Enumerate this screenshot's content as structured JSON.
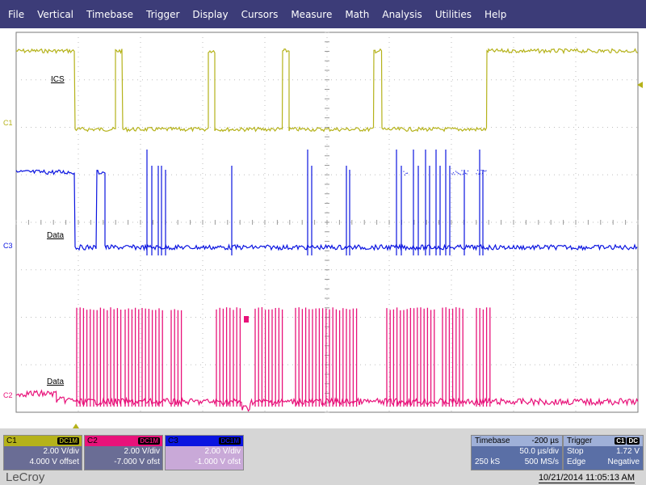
{
  "menu": [
    "File",
    "Vertical",
    "Timebase",
    "Trigger",
    "Display",
    "Cursors",
    "Measure",
    "Math",
    "Analysis",
    "Utilities",
    "Help"
  ],
  "colors": {
    "c1": "#b5b21a",
    "c2": "#e8127a",
    "c3": "#0a14e0",
    "menubar": "#3c3c78"
  },
  "traces": {
    "c1_tag": "C1",
    "c2_tag": "C2",
    "c3_tag": "C3",
    "c1_label": "ICS",
    "c3_label": "Data",
    "c2_label": "Data"
  },
  "channels": {
    "c1": {
      "name": "C1",
      "coupling": "DC1M",
      "vdiv": "2.00 V/div",
      "offset": "4.000 V offset"
    },
    "c2": {
      "name": "C2",
      "coupling": "DC1M",
      "vdiv": "2.00 V/div",
      "offset": "-7.000 V ofst"
    },
    "c3": {
      "name": "C3",
      "coupling": "DC1M",
      "vdiv": "2.00 V/div",
      "offset": "-1.000 V ofst"
    }
  },
  "timebase": {
    "title": "Timebase",
    "delay": "-200 µs",
    "tdiv": "50.0 µs/div",
    "samples": "250 kS",
    "rate": "500 MS/s"
  },
  "trigger": {
    "title": "Trigger",
    "ch": "C1",
    "coupling": "DC",
    "mode": "Stop",
    "level": "1.72 V",
    "type": "Edge",
    "slope": "Negative"
  },
  "brand": "LeCroy",
  "timestamp": "10/21/2014 11:05:13 AM"
}
